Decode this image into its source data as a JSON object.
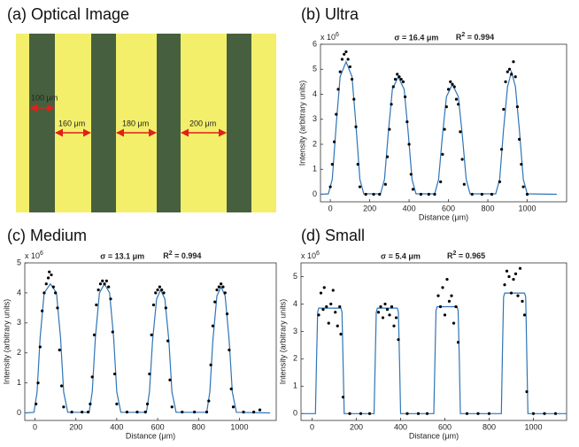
{
  "optical_image": {
    "title": "(a) Optical Image",
    "labels": [
      "100 μm",
      "160 μm",
      "180 μm",
      "200 μm"
    ]
  },
  "chart_data": [
    {
      "type": "line",
      "title": "(b) Ultra",
      "scale_label": "x 10",
      "scale_exponent": "6",
      "sigma": "σ = 16.4 μm",
      "r2_symbol": "R",
      "r2_exponent": "2",
      "r2_value": " = 0.994",
      "xlabel": "Distance (μm)",
      "ylabel": "Intensity (arbitrary units)",
      "xlim": [
        -50,
        1200
      ],
      "ylim": [
        -0.3,
        6
      ],
      "xticks": [
        0,
        200,
        400,
        600,
        800,
        1000
      ],
      "yticks": [
        0,
        1,
        2,
        3,
        4,
        5,
        6
      ],
      "series": [
        {
          "type": "line",
          "color": "#2e75b6",
          "x": [
            -50,
            -10,
            10,
            30,
            50,
            80,
            110,
            130,
            150,
            170,
            255,
            275,
            295,
            315,
            345,
            375,
            395,
            415,
            435,
            530,
            550,
            570,
            590,
            620,
            650,
            670,
            690,
            710,
            840,
            860,
            880,
            900,
            920,
            940,
            960,
            980,
            1000,
            1150
          ],
          "values": [
            0,
            0.02,
            0.6,
            2.8,
            4.7,
            5.3,
            4.7,
            2.8,
            0.6,
            0.02,
            0.02,
            0.6,
            2.5,
            4.2,
            4.7,
            4.2,
            2.5,
            0.6,
            0.02,
            0.02,
            0.6,
            2.4,
            3.9,
            4.4,
            3.9,
            2.4,
            0.6,
            0.02,
            0.02,
            0.6,
            2.6,
            4.3,
            4.9,
            4.3,
            2.6,
            0.6,
            0.02,
            0
          ]
        },
        {
          "type": "scatter",
          "color": "#000000",
          "x": [
            0,
            10,
            20,
            30,
            40,
            50,
            60,
            70,
            80,
            90,
            100,
            110,
            120,
            130,
            140,
            150,
            180,
            220,
            250,
            280,
            290,
            300,
            310,
            320,
            330,
            340,
            350,
            360,
            370,
            380,
            390,
            400,
            410,
            420,
            460,
            500,
            530,
            560,
            570,
            580,
            590,
            600,
            610,
            620,
            630,
            640,
            650,
            660,
            670,
            680,
            720,
            770,
            820,
            860,
            870,
            880,
            890,
            900,
            910,
            920,
            930,
            940,
            950,
            960,
            970,
            980,
            1000
          ],
          "values": [
            0.3,
            1.2,
            2.1,
            3.2,
            4.2,
            4.9,
            5.4,
            5.6,
            5.7,
            5.4,
            5.1,
            4.6,
            3.8,
            2.7,
            1.2,
            0.3,
            0,
            0,
            0,
            0.4,
            1.5,
            2.6,
            3.6,
            4.3,
            4.6,
            4.8,
            4.7,
            4.6,
            4.5,
            3.9,
            2.9,
            2,
            0.8,
            0.2,
            0,
            0,
            0,
            0.5,
            1.6,
            2.6,
            3.5,
            4.2,
            4.5,
            4.4,
            4.3,
            3.8,
            3.6,
            2.5,
            1.4,
            0.4,
            0,
            0,
            0,
            0.5,
            1.8,
            3.4,
            4.5,
            4.9,
            5,
            4.8,
            5.3,
            4.7,
            3.5,
            2.2,
            1.2,
            0.3,
            0
          ]
        }
      ]
    },
    {
      "type": "line",
      "title": "(c) Medium",
      "scale_label": "x 10",
      "scale_exponent": "6",
      "sigma": "σ = 13.1 μm",
      "r2_symbol": "R",
      "r2_exponent": "2",
      "r2_value": " = 0.994",
      "xlabel": "Distance (μm)",
      "ylabel": "Intensity (arbitrary units)",
      "xlim": [
        -50,
        1180
      ],
      "ylim": [
        -0.25,
        5
      ],
      "xticks": [
        0,
        200,
        400,
        600,
        800,
        1000
      ],
      "yticks": [
        0,
        1,
        2,
        3,
        4,
        5
      ],
      "series": [
        {
          "type": "line",
          "color": "#2e75b6",
          "x": [
            -50,
            -5,
            10,
            25,
            45,
            75,
            105,
            125,
            140,
            160,
            265,
            280,
            295,
            315,
            340,
            365,
            385,
            400,
            420,
            545,
            560,
            575,
            595,
            615,
            635,
            655,
            670,
            690,
            840,
            855,
            870,
            890,
            910,
            930,
            950,
            965,
            985,
            1150
          ],
          "values": [
            0,
            0.02,
            0.7,
            2.5,
            4,
            4.3,
            4,
            2.5,
            0.7,
            0.02,
            0.02,
            0.7,
            2.5,
            4,
            4.3,
            4,
            2.5,
            0.7,
            0.02,
            0.02,
            0.7,
            2.4,
            3.8,
            4.1,
            3.8,
            2.4,
            0.7,
            0.02,
            0.02,
            0.7,
            2.4,
            3.9,
            4.2,
            3.9,
            2.4,
            0.7,
            0.02,
            0
          ]
        },
        {
          "type": "scatter",
          "color": "#000000",
          "x": [
            5,
            15,
            25,
            35,
            45,
            55,
            65,
            70,
            80,
            90,
            100,
            110,
            120,
            130,
            140,
            180,
            230,
            260,
            270,
            280,
            290,
            300,
            310,
            320,
            330,
            340,
            350,
            360,
            370,
            380,
            390,
            400,
            450,
            500,
            540,
            550,
            560,
            570,
            580,
            590,
            600,
            610,
            620,
            630,
            640,
            650,
            660,
            670,
            720,
            780,
            840,
            850,
            860,
            870,
            880,
            890,
            900,
            910,
            920,
            930,
            940,
            950,
            960,
            970,
            1020,
            1070,
            1100
          ],
          "values": [
            0.3,
            1,
            2.2,
            3.4,
            4,
            4.3,
            4.5,
            4.7,
            4.6,
            4.2,
            4,
            3.5,
            2.1,
            0.9,
            0.2,
            0.03,
            0.03,
            0.03,
            0.3,
            1.2,
            2.6,
            3.6,
            4.1,
            4.3,
            4.4,
            4.3,
            4.4,
            4.2,
            3.8,
            2.7,
            1.3,
            0.3,
            0.03,
            0.03,
            0.03,
            0.3,
            1.3,
            2.6,
            3.6,
            4,
            4.1,
            4.2,
            4.1,
            4,
            3.5,
            2.4,
            1.1,
            0.2,
            0.03,
            0.03,
            0.03,
            0.4,
            1.6,
            2.9,
            3.7,
            4.1,
            4.2,
            4.3,
            4.2,
            4,
            3.3,
            2.1,
            0.8,
            0.2,
            0.03,
            0.03,
            0.1
          ]
        }
      ]
    },
    {
      "type": "line",
      "title": "(d) Small",
      "scale_label": "x 10",
      "scale_exponent": "6",
      "sigma": "σ = 5.4 μm",
      "r2_symbol": "R",
      "r2_exponent": "2",
      "r2_value": " = 0.965",
      "xlabel": "Distance (μm)",
      "ylabel": "Intensity (arbitrary units)",
      "xlim": [
        -50,
        1150
      ],
      "ylim": [
        -0.25,
        5.5
      ],
      "xticks": [
        0,
        200,
        400,
        600,
        800,
        1000
      ],
      "yticks": [
        0,
        1,
        2,
        3,
        4,
        5
      ],
      "series": [
        {
          "type": "line",
          "color": "#2e75b6",
          "x": [
            -50,
            15,
            20,
            25,
            30,
            130,
            135,
            140,
            145,
            280,
            285,
            290,
            295,
            385,
            390,
            395,
            400,
            550,
            555,
            560,
            565,
            655,
            660,
            665,
            670,
            855,
            860,
            865,
            870,
            960,
            965,
            970,
            975,
            1150
          ],
          "values": [
            0,
            0,
            1.9,
            3.7,
            3.85,
            3.85,
            3.7,
            1.9,
            0,
            0,
            1.9,
            3.7,
            3.85,
            3.85,
            3.7,
            1.9,
            0,
            0,
            2,
            3.75,
            3.9,
            3.9,
            3.75,
            2,
            0,
            0,
            2.2,
            4.25,
            4.4,
            4.4,
            4.25,
            2.2,
            0,
            0
          ]
        },
        {
          "type": "scatter",
          "color": "#000000",
          "x": [
            30,
            40,
            50,
            55,
            65,
            75,
            85,
            95,
            105,
            115,
            125,
            130,
            140,
            170,
            220,
            260,
            300,
            310,
            320,
            330,
            340,
            350,
            360,
            370,
            380,
            390,
            430,
            480,
            520,
            570,
            580,
            590,
            600,
            610,
            620,
            630,
            640,
            650,
            660,
            700,
            750,
            800,
            870,
            880,
            890,
            900,
            910,
            920,
            930,
            940,
            950,
            960,
            970,
            1000,
            1050,
            1100
          ],
          "values": [
            3.6,
            4.4,
            3.8,
            4.6,
            3.9,
            3.3,
            4,
            4.5,
            3.7,
            3.2,
            3.9,
            2.9,
            0.6,
            0,
            0,
            0,
            3.7,
            3.9,
            3.5,
            4,
            3.8,
            3.6,
            3.9,
            3.2,
            3.5,
            2.7,
            0,
            0,
            0,
            4.3,
            3.9,
            4.6,
            3.6,
            4.9,
            4.1,
            4.3,
            3.3,
            3.9,
            2.6,
            0,
            0,
            0,
            4.7,
            5.2,
            5,
            4.4,
            4.9,
            5.1,
            4.3,
            5.3,
            4.1,
            3.6,
            0.8,
            0,
            0,
            0
          ]
        }
      ]
    }
  ]
}
